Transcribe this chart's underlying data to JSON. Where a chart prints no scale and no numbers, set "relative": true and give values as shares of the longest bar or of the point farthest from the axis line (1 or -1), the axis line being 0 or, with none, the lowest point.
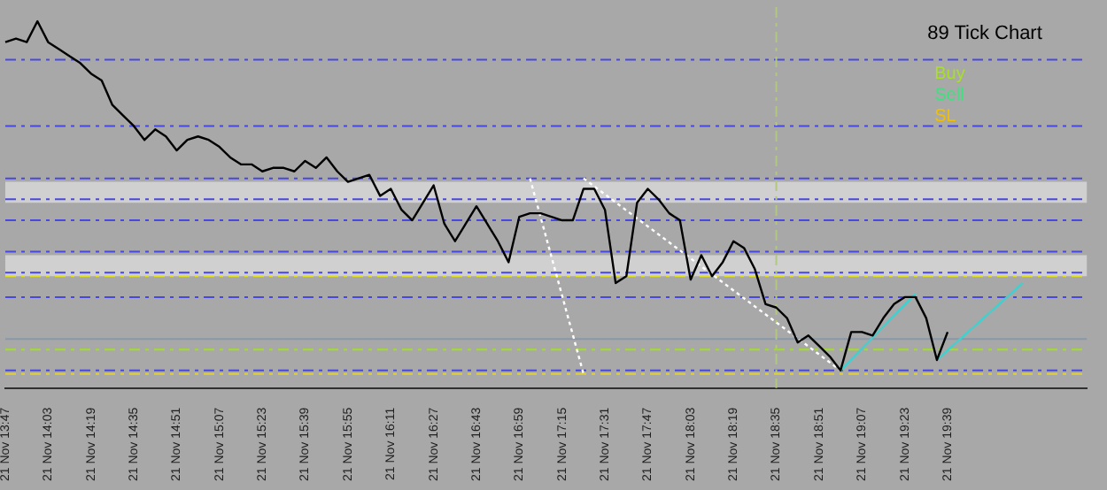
{
  "chart_data": {
    "type": "line",
    "relative": true,
    "marker": "none",
    "grid": false,
    "legend": false,
    "annotations": [
      "89 Tick Chart",
      "Buy",
      "Sell",
      "SL"
    ],
    "categories": [
      "21 Nov 13:47",
      null,
      null,
      null,
      "21 Nov 14:03",
      null,
      null,
      null,
      "21 Nov 14:19",
      null,
      null,
      null,
      "21 Nov 14:35",
      null,
      null,
      null,
      "21 Nov 14:51",
      null,
      null,
      null,
      "21 Nov 15:07",
      null,
      null,
      null,
      "21 Nov 15:23",
      null,
      null,
      null,
      "21 Nov 15:39",
      null,
      null,
      null,
      "21 Nov 15:55",
      null,
      null,
      null,
      "21 Nov 16:11",
      null,
      null,
      null,
      "21 Nov 16:27",
      null,
      null,
      null,
      "21 Nov 16:43",
      null,
      null,
      null,
      "21 Nov 16:59",
      null,
      null,
      null,
      "21 Nov 17:15",
      null,
      null,
      null,
      "21 Nov 17:31",
      null,
      null,
      null,
      "21 Nov 17:47",
      null,
      null,
      null,
      "21 Nov 18:03",
      null,
      null,
      null,
      "21 Nov 18:19",
      null,
      null,
      null,
      "21 Nov 18:35",
      null,
      null,
      null,
      "21 Nov 18:51",
      null,
      null,
      null,
      "21 Nov 19:07",
      null,
      null,
      null,
      "21 Nov 19:23",
      null,
      null,
      null,
      "21 Nov 19:39",
      null,
      null,
      null,
      null,
      null,
      null,
      null,
      null,
      null,
      null,
      null,
      null,
      null
    ],
    "series": [
      {
        "color": "#000000",
        "line_style": "solid",
        "values": [
          0.94,
          0.95,
          0.94,
          1.0,
          0.94,
          0.92,
          0.9,
          0.88,
          0.85,
          0.83,
          0.76,
          0.73,
          0.7,
          0.66,
          0.69,
          0.67,
          0.63,
          0.66,
          0.67,
          0.66,
          0.64,
          0.61,
          0.59,
          0.59,
          0.57,
          0.58,
          0.58,
          0.57,
          0.6,
          0.58,
          0.61,
          0.57,
          0.54,
          0.55,
          0.56,
          0.5,
          0.52,
          0.46,
          0.43,
          0.48,
          0.53,
          0.42,
          0.37,
          0.42,
          0.47,
          0.42,
          0.37,
          0.31,
          0.44,
          0.45,
          0.45,
          0.44,
          0.43,
          0.43,
          0.52,
          0.52,
          0.46,
          0.25,
          0.27,
          0.48,
          0.52,
          0.49,
          0.45,
          0.43,
          0.26,
          0.33,
          0.27,
          0.31,
          0.37,
          0.35,
          0.29,
          0.19,
          0.18,
          0.15,
          0.08,
          0.1,
          0.07,
          0.04,
          0,
          0.11,
          0.11,
          0.1,
          0.15,
          0.19,
          0.21,
          0.21,
          0.15,
          0.03,
          0.11,
          null,
          null,
          null,
          null,
          null,
          null,
          null,
          null,
          null,
          null,
          null,
          null,
          null
        ]
      },
      {
        "color": "#ffffff",
        "line_style": "dotted",
        "values": [
          null,
          null,
          null,
          null,
          null,
          null,
          null,
          null,
          null,
          null,
          null,
          null,
          null,
          null,
          null,
          null,
          null,
          null,
          null,
          null,
          null,
          null,
          null,
          null,
          null,
          null,
          null,
          null,
          null,
          null,
          null,
          null,
          null,
          null,
          null,
          null,
          null,
          null,
          null,
          null,
          null,
          null,
          null,
          null,
          null,
          null,
          null,
          null,
          null,
          null,
          null,
          null,
          null,
          null,
          0.55,
          null,
          null,
          null,
          null,
          null,
          null,
          null,
          null,
          null,
          null,
          null,
          null,
          null,
          null,
          null,
          null,
          null,
          null,
          null,
          null,
          null,
          null,
          null,
          0,
          null,
          null,
          null,
          null,
          null,
          null,
          null,
          null,
          null,
          null,
          null,
          null,
          null,
          null,
          null,
          null,
          null,
          null,
          null,
          null,
          null,
          null,
          null
        ]
      },
      {
        "color": "#ffffff",
        "line_style": "dotted",
        "values": [
          null,
          null,
          null,
          null,
          null,
          null,
          null,
          null,
          null,
          null,
          null,
          null,
          null,
          null,
          null,
          null,
          null,
          null,
          null,
          null,
          null,
          null,
          null,
          null,
          null,
          null,
          null,
          null,
          null,
          null,
          null,
          null,
          null,
          null,
          null,
          null,
          null,
          null,
          null,
          null,
          null,
          null,
          null,
          null,
          null,
          null,
          null,
          null,
          null,
          0.55,
          null,
          null,
          null,
          null,
          -0.01,
          null,
          null,
          null,
          null,
          null,
          null,
          null,
          null,
          null,
          null,
          null,
          null,
          null,
          null,
          null,
          null,
          null,
          null,
          null,
          null,
          null,
          null,
          null,
          null,
          null,
          null,
          null,
          null,
          null,
          null,
          null,
          null,
          null,
          null,
          null,
          null,
          null,
          null,
          null,
          null,
          null,
          null,
          null,
          null,
          null,
          null,
          null
        ]
      },
      {
        "color": "#40d0d0",
        "line_style": "solid",
        "values": [
          null,
          null,
          null,
          null,
          null,
          null,
          null,
          null,
          null,
          null,
          null,
          null,
          null,
          null,
          null,
          null,
          null,
          null,
          null,
          null,
          null,
          null,
          null,
          null,
          null,
          null,
          null,
          null,
          null,
          null,
          null,
          null,
          null,
          null,
          null,
          null,
          null,
          null,
          null,
          null,
          null,
          null,
          null,
          null,
          null,
          null,
          null,
          null,
          null,
          null,
          null,
          null,
          null,
          null,
          null,
          null,
          null,
          null,
          null,
          null,
          null,
          null,
          null,
          null,
          null,
          null,
          null,
          null,
          null,
          null,
          null,
          null,
          null,
          null,
          null,
          null,
          null,
          null,
          0,
          null,
          null,
          null,
          null,
          null,
          null,
          0.22,
          null,
          null,
          null,
          null,
          null,
          null,
          null,
          null,
          null,
          null,
          null,
          null,
          null,
          null,
          null,
          null
        ]
      },
      {
        "color": "#40d0d0",
        "line_style": "solid",
        "values": [
          null,
          null,
          null,
          null,
          null,
          null,
          null,
          null,
          null,
          null,
          null,
          null,
          null,
          null,
          null,
          null,
          null,
          null,
          null,
          null,
          null,
          null,
          null,
          null,
          null,
          null,
          null,
          null,
          null,
          null,
          null,
          null,
          null,
          null,
          null,
          null,
          null,
          null,
          null,
          null,
          null,
          null,
          null,
          null,
          null,
          null,
          null,
          null,
          null,
          null,
          null,
          null,
          null,
          null,
          null,
          null,
          null,
          null,
          null,
          null,
          null,
          null,
          null,
          null,
          null,
          null,
          null,
          null,
          null,
          null,
          null,
          null,
          null,
          null,
          null,
          null,
          null,
          null,
          null,
          null,
          null,
          null,
          null,
          null,
          null,
          null,
          null,
          0.03,
          null,
          null,
          null,
          null,
          null,
          null,
          null,
          0.25,
          null,
          null,
          null,
          null,
          null,
          null
        ]
      }
    ],
    "bands": [
      {
        "axis": "y",
        "from": 0.48,
        "to": 0.54,
        "color": "#d0d0d0"
      },
      {
        "axis": "y",
        "from": 0.27,
        "to": 0.33,
        "color": "#d0d0d0"
      }
    ],
    "ref_lines": [
      {
        "axis": "y",
        "value": 0.89,
        "color": "#4848e0",
        "line_style": "dashed"
      },
      {
        "axis": "y",
        "value": 0.7,
        "color": "#4848e0",
        "line_style": "dashed"
      },
      {
        "axis": "y",
        "value": 0.55,
        "color": "#4848e0",
        "line_style": "dashed"
      },
      {
        "axis": "y",
        "value": 0.49,
        "color": "#4848e0",
        "line_style": "dashed"
      },
      {
        "axis": "y",
        "value": 0.43,
        "color": "#4848e0",
        "line_style": "dashed"
      },
      {
        "axis": "y",
        "value": 0.34,
        "color": "#4848e0",
        "line_style": "dashed"
      },
      {
        "axis": "y",
        "value": 0.28,
        "color": "#4848e0",
        "line_style": "dashed"
      },
      {
        "axis": "y",
        "value": 0.21,
        "color": "#4848e0",
        "line_style": "dashed"
      },
      {
        "axis": "y",
        "value": 0,
        "color": "#4848e0",
        "line_style": "dashed"
      },
      {
        "axis": "y",
        "value": 0.27,
        "color": "#e0e020",
        "line_style": "dashed"
      },
      {
        "axis": "y",
        "value": 0.06,
        "color": "#a0e020",
        "line_style": "dashed"
      },
      {
        "axis": "y",
        "value": -0.01,
        "color": "#e0d040",
        "line_style": "dashed"
      },
      {
        "axis": "y",
        "value": 0.09,
        "color": "#8898a8",
        "line_style": "solid"
      },
      {
        "axis": "x",
        "value": "21 Nov 18:35",
        "color": "#b0c880",
        "line_style": "dashed"
      }
    ]
  }
}
